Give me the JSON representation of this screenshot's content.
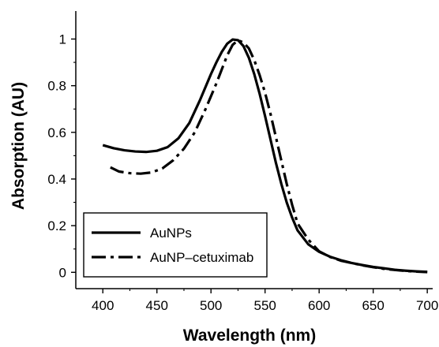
{
  "chart_data": {
    "type": "line",
    "title": "",
    "xlabel": "Wavelength (nm)",
    "ylabel": "Absorption (AU)",
    "xlim": [
      375,
      705
    ],
    "ylim": [
      -0.07,
      1.12
    ],
    "xticks": [
      400,
      450,
      500,
      550,
      600,
      650,
      700
    ],
    "yticks": [
      0,
      0.2,
      0.4,
      0.6,
      0.8,
      1
    ],
    "xtick_labels": [
      "400",
      "450",
      "500",
      "550",
      "600",
      "650",
      "700"
    ],
    "ytick_labels": [
      "0",
      "0.2",
      "0.4",
      "0.6",
      "0.8",
      "1"
    ],
    "grid": false,
    "legend": "bottom-left",
    "series": [
      {
        "name": "AuNPs",
        "style": "solid",
        "color": "#000000",
        "x": [
          400,
          410,
          420,
          430,
          440,
          450,
          460,
          470,
          480,
          490,
          500,
          505,
          510,
          515,
          520,
          525,
          530,
          535,
          540,
          545,
          550,
          555,
          560,
          565,
          570,
          575,
          580,
          590,
          600,
          610,
          620,
          630,
          640,
          650,
          660,
          670,
          680,
          690,
          700
        ],
        "y": [
          0.545,
          0.532,
          0.523,
          0.518,
          0.516,
          0.521,
          0.537,
          0.575,
          0.64,
          0.74,
          0.85,
          0.9,
          0.945,
          0.98,
          0.998,
          0.995,
          0.97,
          0.92,
          0.85,
          0.765,
          0.67,
          0.57,
          0.47,
          0.38,
          0.3,
          0.235,
          0.18,
          0.12,
          0.088,
          0.067,
          0.052,
          0.04,
          0.031,
          0.023,
          0.017,
          0.011,
          0.007,
          0.004,
          0.002
        ]
      },
      {
        "name": "AuNP–cetuximab",
        "style": "dash-dot",
        "color": "#000000",
        "x": [
          407,
          415,
          425,
          435,
          445,
          455,
          465,
          475,
          485,
          495,
          505,
          510,
          515,
          520,
          525,
          530,
          535,
          540,
          545,
          550,
          555,
          560,
          565,
          570,
          575,
          580,
          590,
          600,
          610,
          620,
          630,
          640,
          650,
          660,
          670,
          680,
          690,
          700
        ],
        "y": [
          0.45,
          0.432,
          0.425,
          0.423,
          0.428,
          0.445,
          0.48,
          0.53,
          0.6,
          0.7,
          0.81,
          0.87,
          0.93,
          0.975,
          0.995,
          0.985,
          0.96,
          0.91,
          0.845,
          0.77,
          0.68,
          0.58,
          0.48,
          0.38,
          0.29,
          0.21,
          0.14,
          0.09,
          0.066,
          0.05,
          0.04,
          0.03,
          0.022,
          0.015,
          0.01,
          0.006,
          0.003,
          0.001
        ]
      }
    ]
  }
}
